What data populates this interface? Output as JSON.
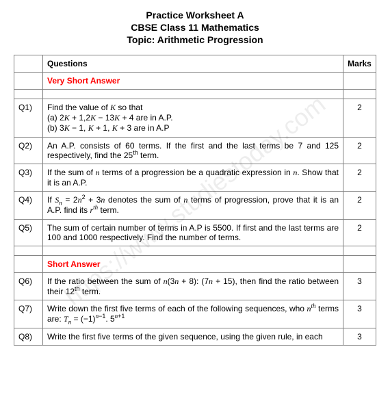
{
  "header": {
    "line1": "Practice Worksheet A",
    "line2": "CBSE Class 11 Mathematics",
    "line3": "Topic: Arithmetic Progression"
  },
  "table": {
    "columns": [
      "",
      "Questions",
      "Marks"
    ],
    "col_widths": [
      "42px",
      "auto",
      "48px"
    ],
    "header_bg": "#ffffff",
    "border_color": "#808080",
    "font_size": 12,
    "section_color": "#ff0000"
  },
  "sections": {
    "vsa": "Very Short Answer",
    "sa": "Short Answer"
  },
  "questions": {
    "q1": {
      "num": "Q1)",
      "text": "Find the value of <span class='math'>K</span> so that",
      "a": "(a) 2<span class='math'>K</span> + 1,2<span class='math'>K</span> − 13<span class='math'>K</span> + 4 are in A.P.",
      "b": "(b) 3<span class='math'>K</span> − 1, <span class='math'>K</span> + 1, <span class='math'>K</span> + 3 are in A.P",
      "marks": "2"
    },
    "q2": {
      "num": "Q2)",
      "text": "An A.P. consists of 60 terms. If the first and the last terms be 7 and 125 respectively, find the 25<sup>th</sup> term.",
      "marks": "2"
    },
    "q3": {
      "num": "Q3)",
      "text": "If the sum of <span class='math'>n</span> terms of a progression be a quadratic expression in <span class='math'>n</span>. Show that it is an A.P.",
      "marks": "2"
    },
    "q4": {
      "num": "Q4)",
      "text": "If <span class='math'>S<sub>n</sub></span> = 2<span class='math'>n</span><sup>2</sup> + 3<span class='math'>n</span> denotes the sum of <span class='math'>n</span> terms of progression, prove that it is an A.P. find its <span class='math'>r<sup>th</sup></span> term.",
      "marks": "2"
    },
    "q5": {
      "num": "Q5)",
      "text": "The sum of certain number of terms in A.P is 5500. If first and the last terms are 100 and 1000 respectively. Find the number of terms.",
      "marks": "2"
    },
    "q6": {
      "num": "Q6)",
      "text": "If the ratio between the sum of <span class='math'>n</span>(3<span class='math'>n</span> + 8): (7<span class='math'>n</span> + 15), then find the ratio between their 12<sup>th</sup> term.",
      "marks": "3"
    },
    "q7": {
      "num": "Q7)",
      "text": "Write down the first five terms of each of the following sequences, who <span class='math'>n<sup>th</sup></span> terms are: <span class='math'>T<sub>n</sub></span> = (−1)<sup><span class='math'>n</span>−1</sup>. 5<sup><span class='math'>n</span>+1</sup>",
      "marks": "3"
    },
    "q8": {
      "num": "Q8)",
      "text": "Write the first five terms of the given sequence, using the given rule, in each",
      "marks": "3"
    }
  },
  "watermark": "https://www.studiestoday.com"
}
